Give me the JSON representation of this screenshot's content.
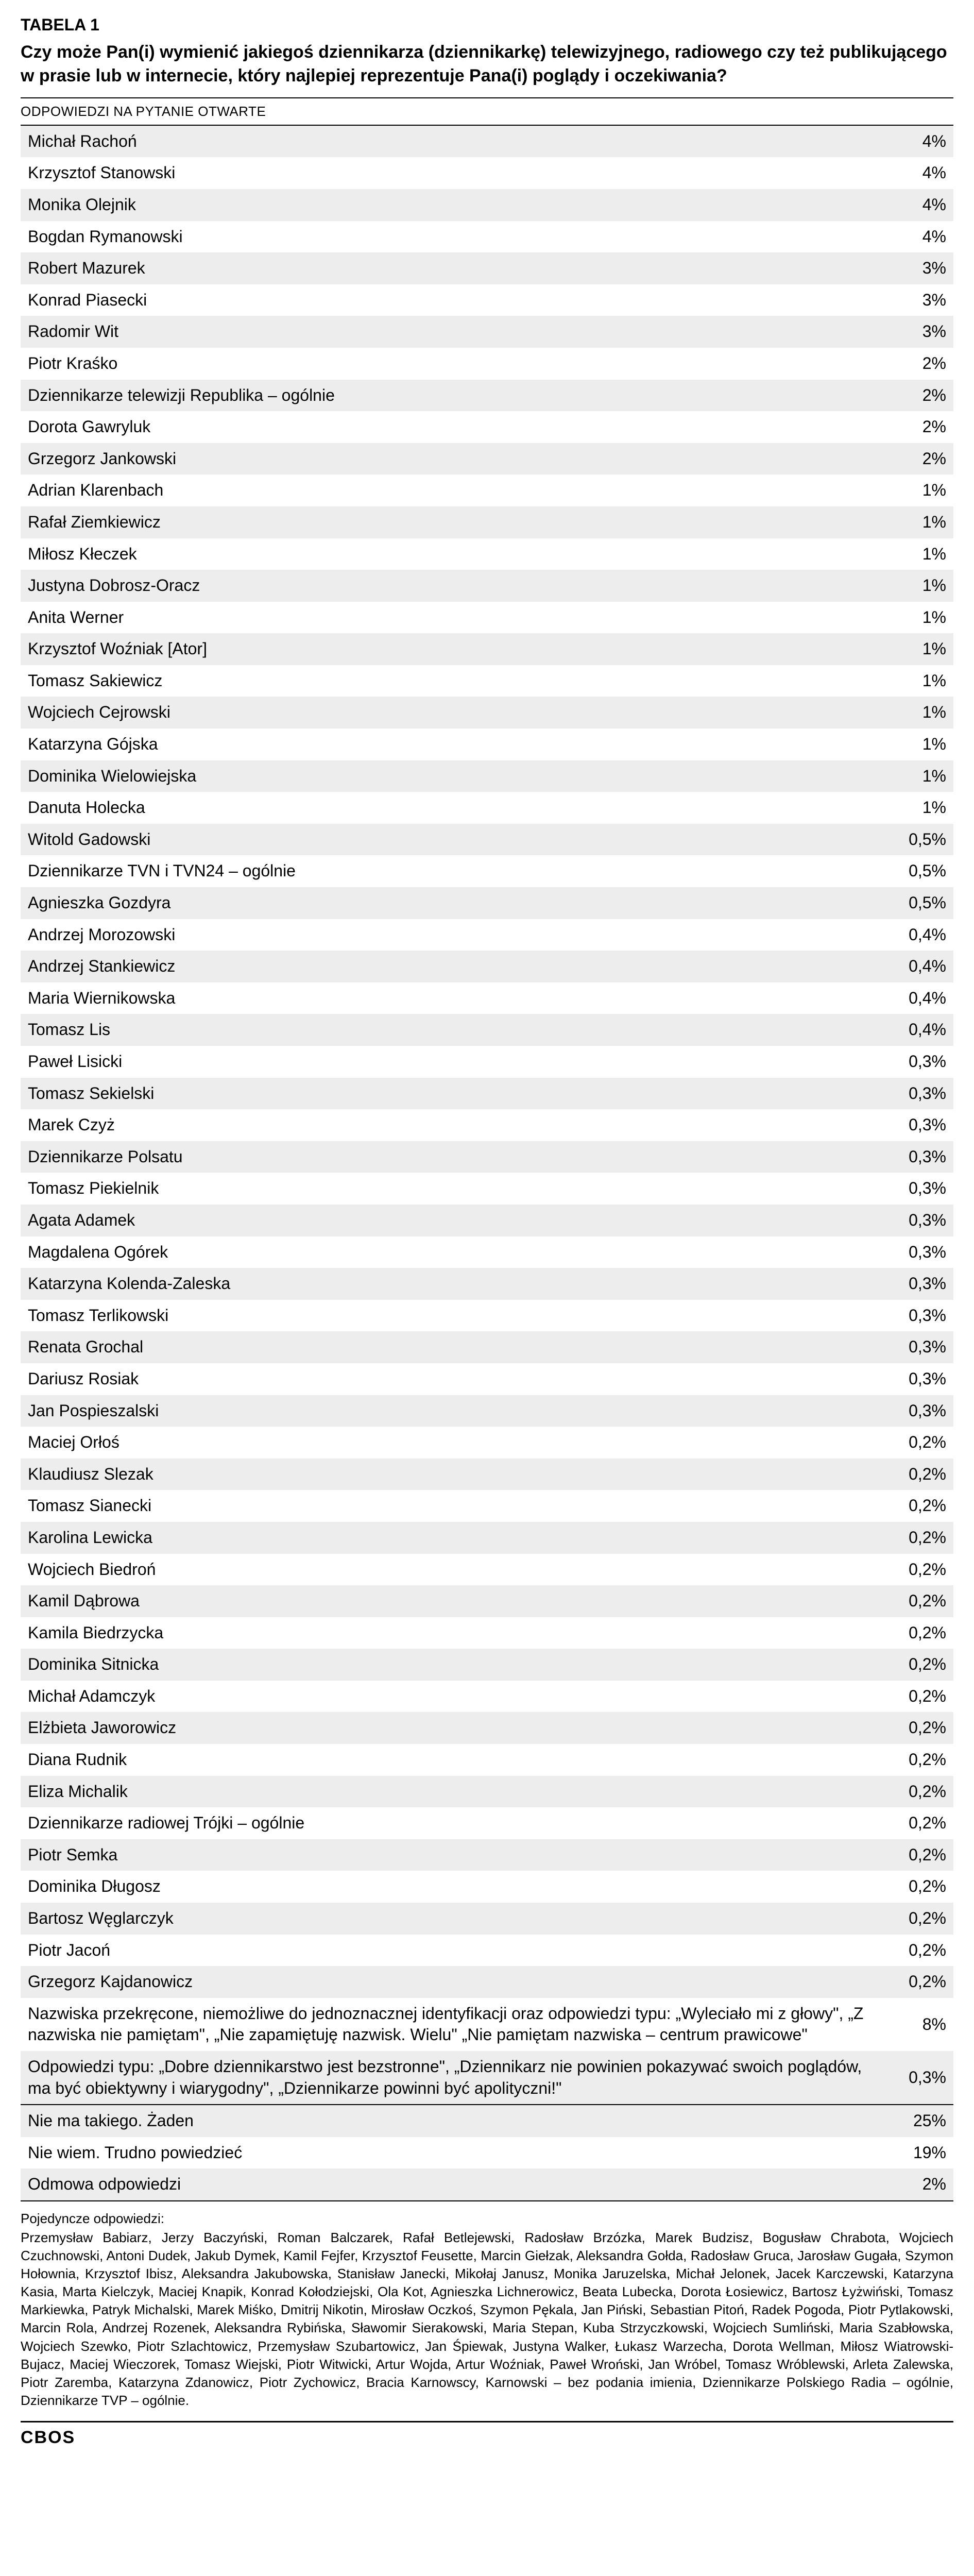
{
  "tableLabel": "TABELA 1",
  "question": "Czy może Pan(i) wymienić jakiegoś dziennikarza (dziennikarkę) telewizyjnego, radiowego czy też publikującego w prasie lub w internecie, który najlepiej reprezentuje Pana(i) poglądy i oczekiwania?",
  "subheader": "ODPOWIEDZI NA PYTANIE OTWARTE",
  "mainRows": [
    {
      "label": "Michał Rachoń",
      "value": "4%"
    },
    {
      "label": "Krzysztof Stanowski",
      "value": "4%"
    },
    {
      "label": "Monika Olejnik",
      "value": "4%"
    },
    {
      "label": "Bogdan Rymanowski",
      "value": "4%"
    },
    {
      "label": "Robert Mazurek",
      "value": "3%"
    },
    {
      "label": "Konrad Piasecki",
      "value": "3%"
    },
    {
      "label": "Radomir Wit",
      "value": "3%"
    },
    {
      "label": "Piotr Kraśko",
      "value": "2%"
    },
    {
      "label": "Dziennikarze telewizji Republika – ogólnie",
      "value": "2%"
    },
    {
      "label": "Dorota Gawryluk",
      "value": "2%"
    },
    {
      "label": "Grzegorz Jankowski",
      "value": "2%"
    },
    {
      "label": "Adrian Klarenbach",
      "value": "1%"
    },
    {
      "label": "Rafał Ziemkiewicz",
      "value": "1%"
    },
    {
      "label": "Miłosz Kłeczek",
      "value": "1%"
    },
    {
      "label": "Justyna Dobrosz-Oracz",
      "value": "1%"
    },
    {
      "label": "Anita Werner",
      "value": "1%"
    },
    {
      "label": "Krzysztof Woźniak [Ator]",
      "value": "1%"
    },
    {
      "label": "Tomasz Sakiewicz",
      "value": "1%"
    },
    {
      "label": "Wojciech Cejrowski",
      "value": "1%"
    },
    {
      "label": "Katarzyna Gójska",
      "value": "1%"
    },
    {
      "label": "Dominika Wielowiejska",
      "value": "1%"
    },
    {
      "label": "Danuta Holecka",
      "value": "1%"
    },
    {
      "label": "Witold Gadowski",
      "value": "0,5%"
    },
    {
      "label": "Dziennikarze TVN i TVN24 – ogólnie",
      "value": "0,5%"
    },
    {
      "label": "Agnieszka Gozdyra",
      "value": "0,5%"
    },
    {
      "label": "Andrzej Morozowski",
      "value": "0,4%"
    },
    {
      "label": "Andrzej Stankiewicz",
      "value": "0,4%"
    },
    {
      "label": "Maria Wiernikowska",
      "value": "0,4%"
    },
    {
      "label": "Tomasz Lis",
      "value": "0,4%"
    },
    {
      "label": "Paweł Lisicki",
      "value": "0,3%"
    },
    {
      "label": "Tomasz Sekielski",
      "value": "0,3%"
    },
    {
      "label": "Marek Czyż",
      "value": "0,3%"
    },
    {
      "label": "Dziennikarze Polsatu",
      "value": "0,3%"
    },
    {
      "label": "Tomasz Piekielnik",
      "value": "0,3%"
    },
    {
      "label": "Agata Adamek",
      "value": "0,3%"
    },
    {
      "label": "Magdalena Ogórek",
      "value": "0,3%"
    },
    {
      "label": "Katarzyna Kolenda-Zaleska",
      "value": "0,3%"
    },
    {
      "label": "Tomasz Terlikowski",
      "value": "0,3%"
    },
    {
      "label": "Renata Grochal",
      "value": "0,3%"
    },
    {
      "label": "Dariusz Rosiak",
      "value": "0,3%"
    },
    {
      "label": "Jan Pospieszalski",
      "value": "0,3%"
    },
    {
      "label": "Maciej Orłoś",
      "value": "0,2%"
    },
    {
      "label": "Klaudiusz Slezak",
      "value": "0,2%"
    },
    {
      "label": "Tomasz Sianecki",
      "value": "0,2%"
    },
    {
      "label": "Karolina Lewicka",
      "value": "0,2%"
    },
    {
      "label": "Wojciech Biedroń",
      "value": "0,2%"
    },
    {
      "label": "Kamil Dąbrowa",
      "value": "0,2%"
    },
    {
      "label": "Kamila Biedrzycka",
      "value": "0,2%"
    },
    {
      "label": "Dominika Sitnicka",
      "value": "0,2%"
    },
    {
      "label": "Michał Adamczyk",
      "value": "0,2%"
    },
    {
      "label": "Elżbieta Jaworowicz",
      "value": "0,2%"
    },
    {
      "label": "Diana Rudnik",
      "value": "0,2%"
    },
    {
      "label": "Eliza Michalik",
      "value": "0,2%"
    },
    {
      "label": "Dziennikarze radiowej Trójki – ogólnie",
      "value": "0,2%"
    },
    {
      "label": "Piotr Semka",
      "value": "0,2%"
    },
    {
      "label": "Dominika Długosz",
      "value": "0,2%"
    },
    {
      "label": "Bartosz Węglarczyk",
      "value": "0,2%"
    },
    {
      "label": "Piotr Jacoń",
      "value": "0,2%"
    },
    {
      "label": "Grzegorz Kajdanowicz",
      "value": "0,2%"
    },
    {
      "label": "Nazwiska przekręcone, niemożliwe do jednoznacznej identyfikacji oraz odpowiedzi typu: „Wyleciało mi z głowy\", „Z nazwiska nie pamiętam\", „Nie zapamiętuję nazwisk. Wielu\" „Nie pamiętam nazwiska – centrum prawicowe\"",
      "value": "8%"
    },
    {
      "label": "Odpowiedzi typu: „Dobre dziennikarstwo jest bezstronne\", „Dziennikarz nie powinien pokazywać swoich poglądów, ma być obiektywny i wiarygodny\", „Dziennikarze powinni być apolityczni!\"",
      "value": "0,3%"
    }
  ],
  "closingRows": [
    {
      "label": "Nie ma takiego. Żaden",
      "value": "25%"
    },
    {
      "label": "Nie wiem. Trudno powiedzieć",
      "value": "19%"
    },
    {
      "label": "Odmowa odpowiedzi",
      "value": "2%"
    }
  ],
  "footnoteIntro": "Pojedyncze odpowiedzi:",
  "footnote": "Przemysław Babiarz, Jerzy Baczyński, Roman Balczarek, Rafał Betlejewski, Radosław Brzózka, Marek Budzisz, Bogusław Chrabota, Wojciech Czuchnowski, Antoni Dudek, Jakub Dymek, Kamil Fejfer, Krzysztof Feusette, Marcin Giełzak, Aleksandra Gołda, Radosław Gruca, Jarosław Gugała, Szymon Hołownia, Krzysztof Ibisz, Aleksandra Jakubowska, Stanisław Janecki, Mikołaj Janusz, Monika Jaruzelska, Michał Jelonek, Jacek Karczewski, Katarzyna Kasia, Marta Kielczyk, Maciej Knapik, Konrad Kołodziejski, Ola Kot, Agnieszka Lichnerowicz, Beata Lubecka, Dorota Łosiewicz, Bartosz Łyżwiński, Tomasz Markiewka, Patryk Michalski, Marek Miśko, Dmitrij Nikotin, Mirosław Oczkoś, Szymon Pękala, Jan Piński, Sebastian Pitoń, Radek Pogoda, Piotr Pytlakowski, Marcin Rola, Andrzej Rozenek, Aleksandra Rybińska, Sławomir Sierakowski, Maria Stepan, Kuba Strzyczkowski, Wojciech Sumliński, Maria Szabłowska, Wojciech Szewko, Piotr Szlachtowicz, Przemysław Szubartowicz, Jan Śpiewak, Justyna Walker, Łukasz Warzecha, Dorota Wellman, Miłosz Wiatrowski-Bujacz, Maciej Wieczorek, Tomasz Wiejski, Piotr Witwicki, Artur Wojda, Artur Woźniak, Paweł Wroński, Jan Wróbel, Tomasz Wróblewski, Arleta Zalewska, Piotr Zaremba, Katarzyna Zdanowicz, Piotr Zychowicz, Bracia Karnowscy, Karnowski – bez podania imienia, Dziennikarze Polskiego Radia – ogólnie, Dziennikarze TVP – ogólnie.",
  "footerLogo": "CBOS",
  "style": {
    "stripe_odd": "#ededed",
    "stripe_even": "#ffffff",
    "border_color": "#000000",
    "font_family": "Arial, Helvetica, sans-serif",
    "title_fontsize": 32,
    "question_fontsize": 34,
    "row_fontsize": 32,
    "footnote_fontsize": 26
  }
}
